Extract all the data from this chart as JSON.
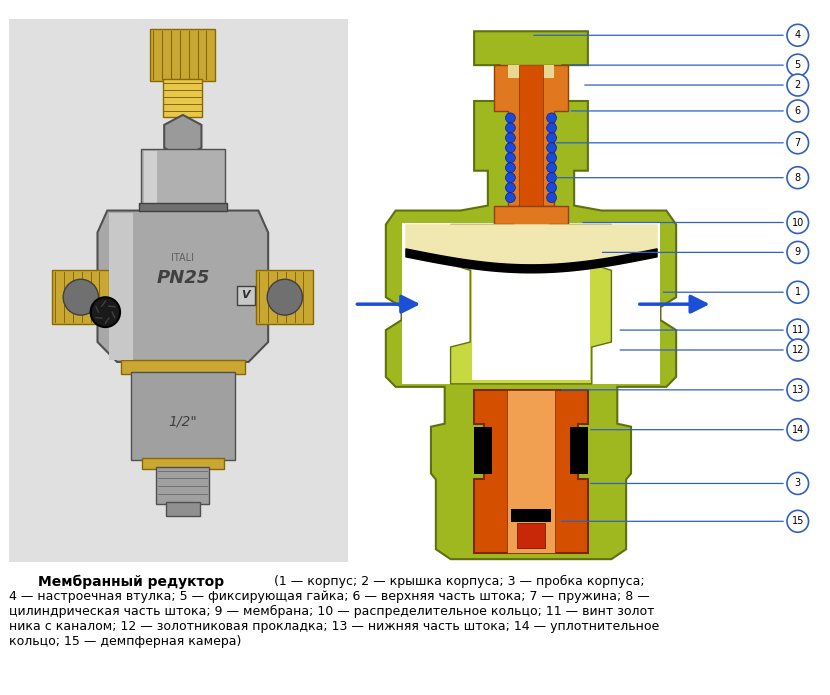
{
  "background_color": "#ffffff",
  "caption_bold": "Мембранный редуктор",
  "arrow_color": "#1a4fd6",
  "label_line_color": "#3060c0",
  "fig_width": 8.3,
  "fig_height": 6.95,
  "dpi": 100,
  "gold": "#c8a832",
  "gold_light": "#e8c84a",
  "gold_dark": "#8a6800",
  "orange_red": "#d45000",
  "orange": "#e07820",
  "orange_light": "#f0a050",
  "yellow_green": "#a0b820",
  "green_light": "#c8d840",
  "blue_dot": "#1a4adc",
  "beige": "#e8d890",
  "cream": "#f0e8b0",
  "white": "#ffffff",
  "black": "#000000",
  "caption_line1": "(1 — корпус; 2 — крышка корпуса; 3 — пробка корпуса;",
  "caption_line2": "4 — настроечная втулка; 5 — фиксирующая гайка; 6 — верхняя часть штока; 7 — пружина; 8 —",
  "caption_line3": "цилиндрическая часть штока; 9 — мембрана; 10 — распределительное кольцо; 11 — винт золот",
  "caption_line4": "ника с каналом; 12 — золотниковая прокладка; 13 — нижняя часть штока; 14 — уплотнительное",
  "caption_line5": "кольцо; 15 — демпферная камера)"
}
